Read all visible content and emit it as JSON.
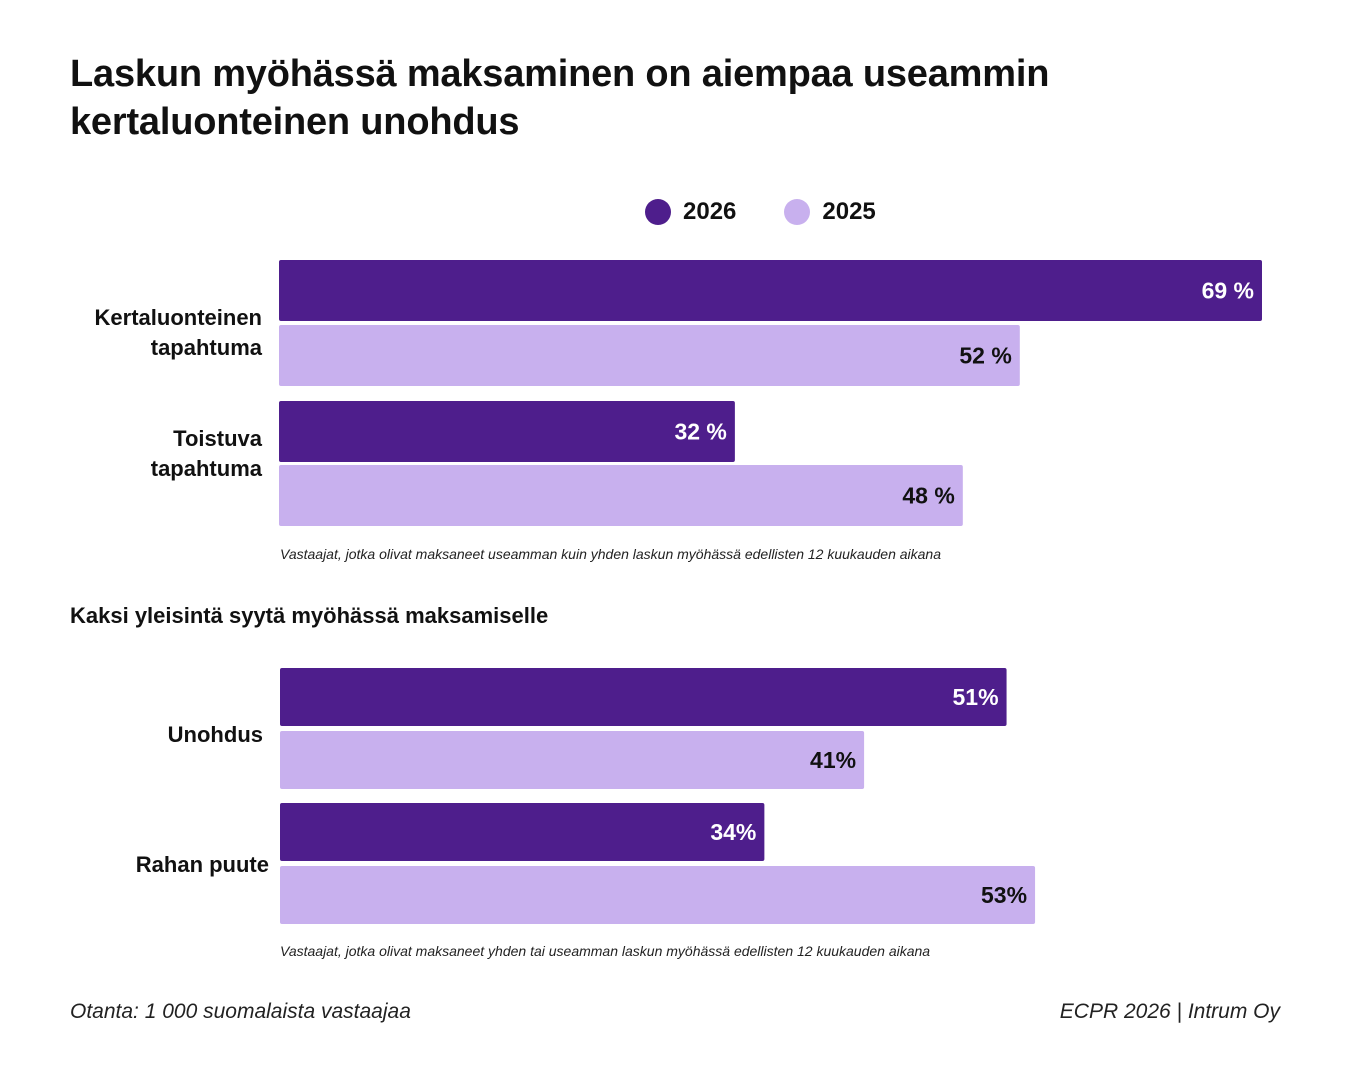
{
  "title": {
    "line1": "Laskun myöhässä maksaminen on aiempaa useammin",
    "line2": "kertaluonteinen unohdus"
  },
  "legend": [
    {
      "label": "2026",
      "color": "#4e1e8c"
    },
    {
      "label": "2025",
      "color": "#c8b0ee"
    }
  ],
  "colors": {
    "y2026": "#4e1e8c",
    "y2025": "#c8b0ee"
  },
  "section2_title": "Kaksi yleisintä syytä myöhässä maksamiselle",
  "footer": {
    "left": "Otanta: 1 000 suomalaista vastaajaa",
    "right": "ECPR 2026 | Intrum Oy"
  },
  "chart_data": [
    {
      "type": "bar",
      "orientation": "horizontal",
      "categories": [
        [
          "Kertaluonteinen",
          "tapahtuma"
        ],
        [
          "Toistuva",
          "tapahtuma"
        ]
      ],
      "series": [
        {
          "name": "2026",
          "values": [
            69,
            32
          ],
          "labels": [
            "69 %",
            "32 %"
          ]
        },
        {
          "name": "2025",
          "values": [
            52,
            48
          ],
          "labels": [
            "52 %",
            "48 %"
          ]
        }
      ],
      "xlim": [
        0,
        69
      ],
      "note": "Vastaajat, jotka olivat maksaneet useamman kuin yhden laskun myöhässä edellisten 12 kuukauden aikana"
    },
    {
      "type": "bar",
      "orientation": "horizontal",
      "categories": [
        [
          "Unohdus"
        ],
        [
          "Rahan puute"
        ]
      ],
      "series": [
        {
          "name": "2026",
          "values": [
            51,
            34
          ],
          "labels": [
            "51%",
            "34%"
          ]
        },
        {
          "name": "2025",
          "values": [
            41,
            53
          ],
          "labels": [
            "41%",
            "53%"
          ]
        }
      ],
      "xlim": [
        0,
        69
      ],
      "note": "Vastaajat, jotka olivat maksaneet yhden tai useamman laskun myöhässä edellisten 12 kuukauden aikana"
    }
  ]
}
